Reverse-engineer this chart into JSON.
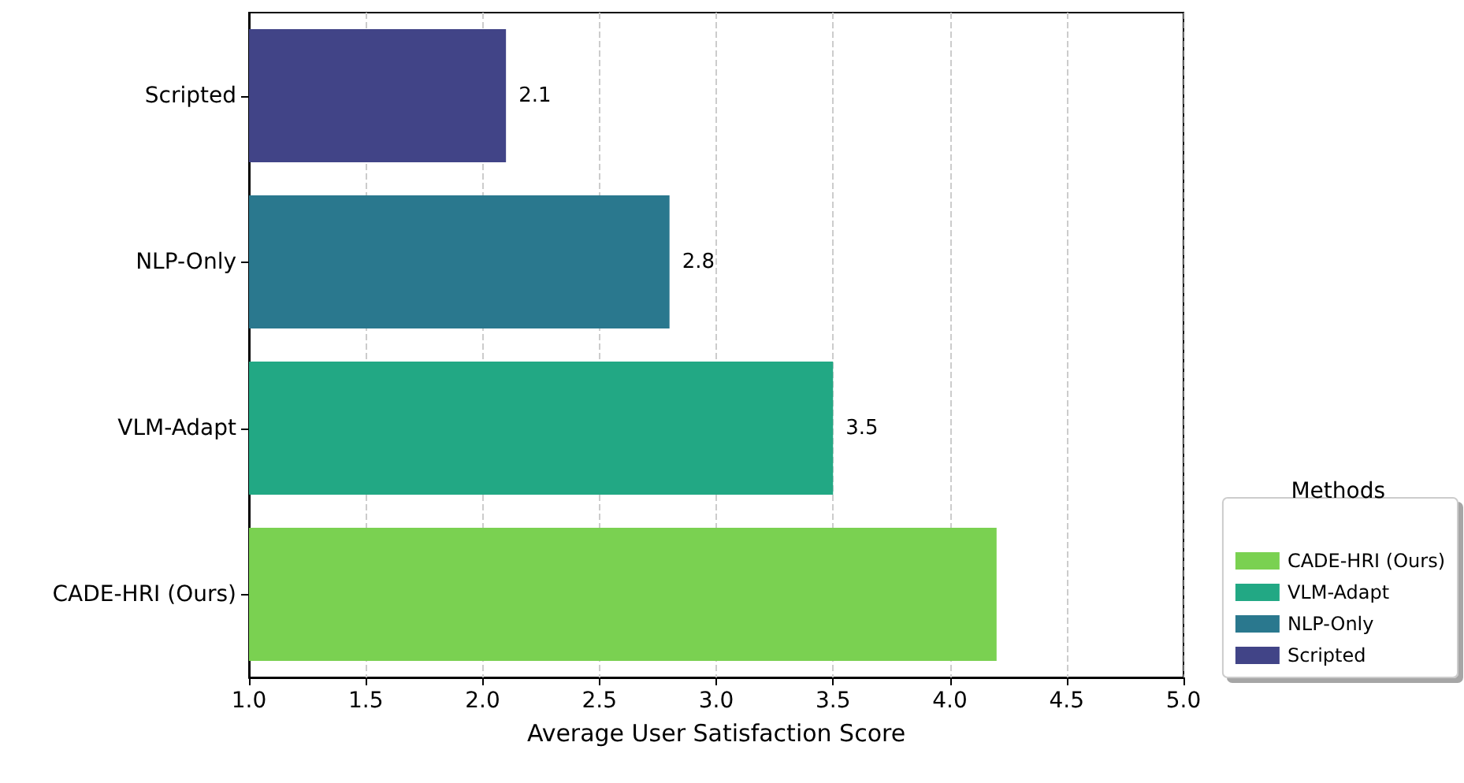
{
  "chart_data": {
    "type": "bar",
    "orientation": "horizontal",
    "xlabel": "Average User Satisfaction Score",
    "legend_title": "Methods",
    "categories": [
      "Scripted",
      "NLP-Only",
      "VLM-Adapt",
      "CADE-HRI (Ours)"
    ],
    "series": [
      {
        "name": "CADE-HRI (Ours)",
        "color": "#7ad151",
        "values": [
          null,
          null,
          null,
          4.2
        ],
        "value_labels": [
          null,
          null,
          null,
          null
        ]
      },
      {
        "name": "VLM-Adapt",
        "color": "#22a884",
        "values": [
          null,
          null,
          3.5,
          null
        ],
        "value_labels": [
          null,
          null,
          "3.5",
          null
        ]
      },
      {
        "name": "NLP-Only",
        "color": "#2a788e",
        "values": [
          null,
          2.8,
          null,
          null
        ],
        "value_labels": [
          null,
          "2.8",
          null,
          null
        ]
      },
      {
        "name": "Scripted",
        "color": "#414487",
        "values": [
          2.1,
          null,
          null,
          null
        ],
        "value_labels": [
          "2.1",
          null,
          null,
          null
        ]
      }
    ],
    "xlim": [
      1.0,
      5.0
    ],
    "xticks": [
      {
        "value": 1,
        "label": "1.0"
      },
      {
        "value": 1.5,
        "label": "1.5"
      },
      {
        "value": 2,
        "label": "2.0"
      },
      {
        "value": 2.5,
        "label": "2.5"
      },
      {
        "value": 3,
        "label": "3.0"
      },
      {
        "value": 3.5,
        "label": "3.5"
      },
      {
        "value": 4,
        "label": "4.0"
      },
      {
        "value": 4.5,
        "label": "4.5"
      },
      {
        "value": 5,
        "label": "5.0"
      }
    ],
    "grid": "x",
    "legend": "bottom right"
  }
}
